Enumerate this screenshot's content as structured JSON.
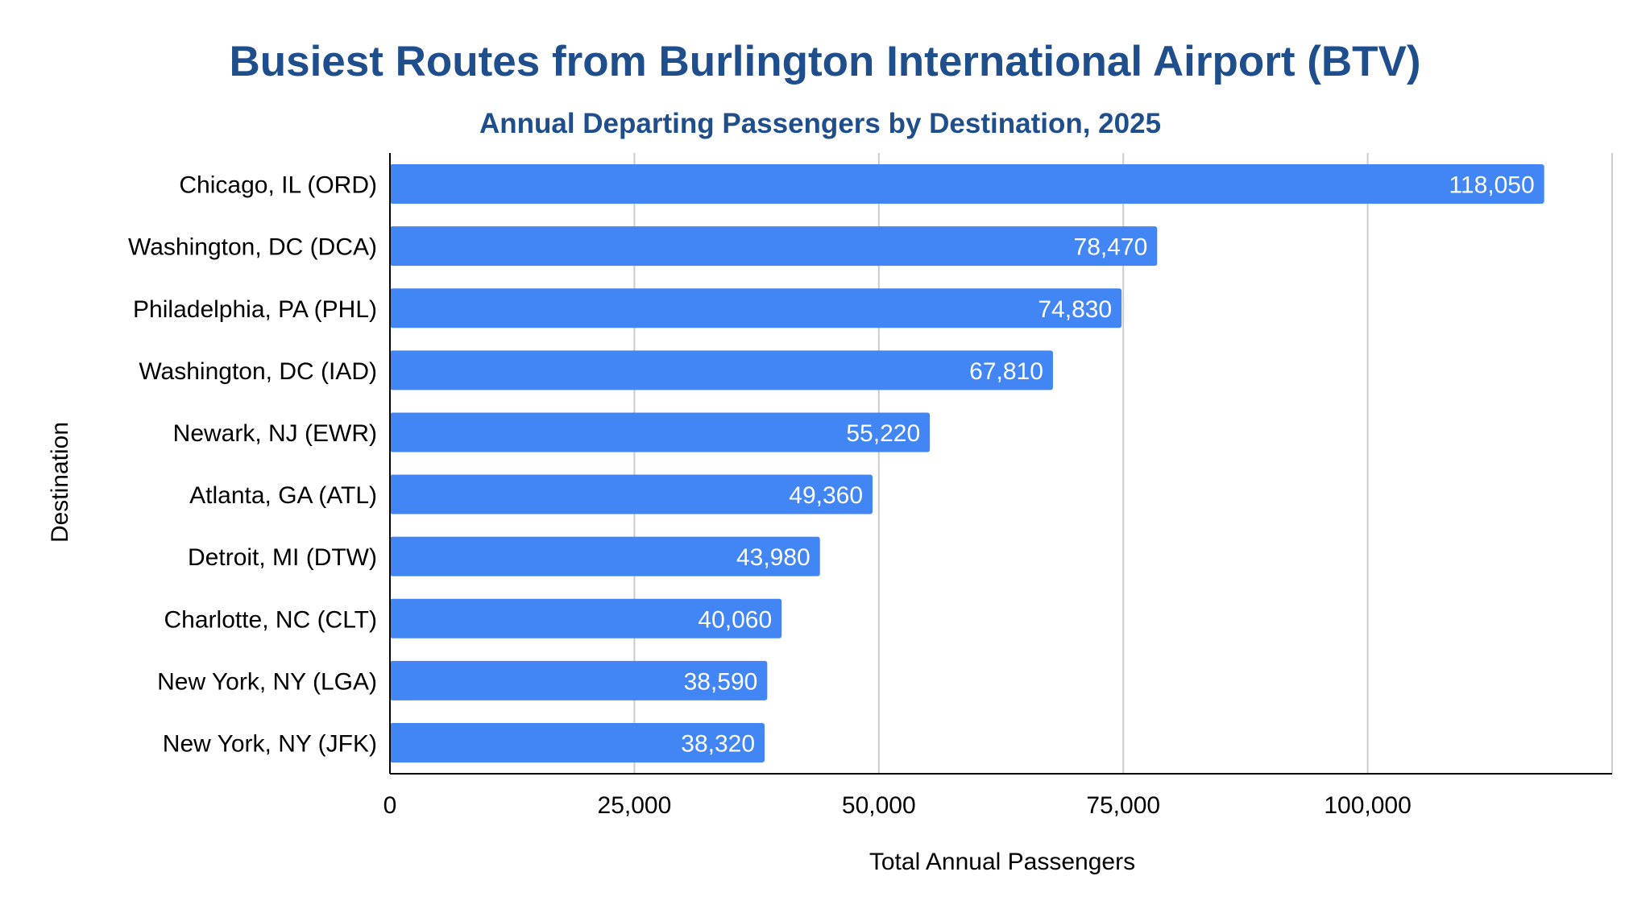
{
  "chart_data": {
    "type": "bar",
    "orientation": "horizontal",
    "title": "Busiest Routes from Burlington International Airport (BTV)",
    "subtitle": "Annual Departing Passengers by Destination, 2025",
    "xlabel": "Total Annual Passengers",
    "ylabel": "Destination",
    "categories": [
      "Chicago, IL (ORD)",
      "Washington, DC (DCA)",
      "Philadelphia, PA (PHL)",
      "Washington, DC (IAD)",
      "Newark, NJ (EWR)",
      "Atlanta, GA (ATL)",
      "Detroit, MI (DTW)",
      "Charlotte, NC (CLT)",
      "New York, NY (LGA)",
      "New York, NY (JFK)"
    ],
    "values": [
      118050,
      78470,
      74830,
      67810,
      55220,
      49360,
      43980,
      40060,
      38590,
      38320
    ],
    "data_labels": [
      "118,050",
      "78,470",
      "74,830",
      "67,810",
      "55,220",
      "49,360",
      "43,980",
      "40,060",
      "38,590",
      "38,320"
    ],
    "xlim": [
      0,
      125000
    ],
    "x_ticks": [
      0,
      25000,
      50000,
      75000,
      100000
    ],
    "x_tick_labels": [
      "0",
      "25,000",
      "50,000",
      "75,000",
      "100,000"
    ],
    "grid": true,
    "legend": "none",
    "colors": {
      "bar": "#4285f4",
      "title": "#1f4e8c",
      "grid": "#cccccc",
      "axis": "#000000",
      "label_text": "#ffffff"
    }
  }
}
